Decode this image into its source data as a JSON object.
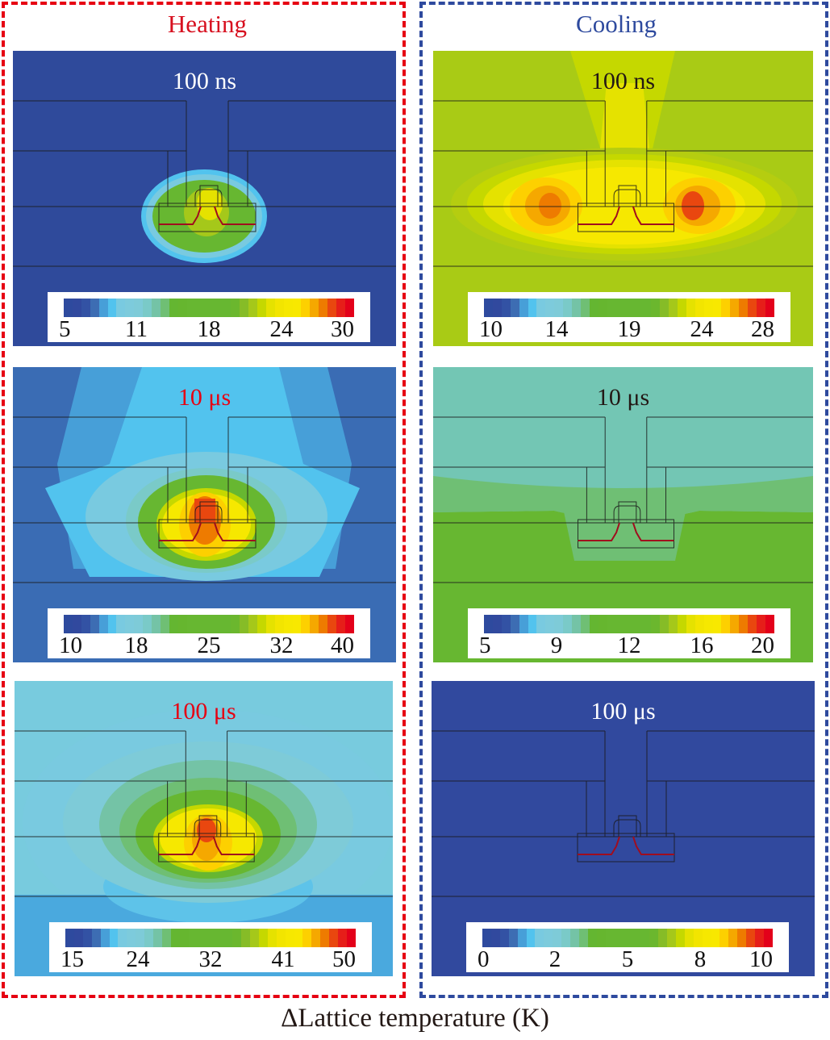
{
  "figure": {
    "columns": [
      {
        "title": "Heating",
        "color": "#e60012"
      },
      {
        "title": "Cooling",
        "color": "#2e4a9e"
      }
    ],
    "bottom_label": "ΔLattice temperature (K)"
  },
  "colormap": [
    "#2e4a9e",
    "#31499e",
    "#3352a4",
    "#3d6db3",
    "#479fd8",
    "#52c3ee",
    "#79cae0",
    "#7dcbdc",
    "#7ecbd8",
    "#7acac8",
    "#74c3a6",
    "#6fbf74",
    "#64b631",
    "#66b62f",
    "#67b731",
    "#67b731",
    "#67b731",
    "#67b731",
    "#67b731",
    "#6bb72e",
    "#86bc27",
    "#a5c81a",
    "#c5d800",
    "#e5e200",
    "#f2e500",
    "#f6e800",
    "#f8e800",
    "#fdd000",
    "#f5a800",
    "#ee7b00",
    "#e9470f",
    "#e61e19",
    "#e3001a"
  ],
  "panels": [
    {
      "id": "heating-100ns",
      "time": "100 ns",
      "time_color": "#ffffff",
      "bg": "#2f4a9b",
      "ticks": [
        "5",
        "11",
        "18",
        "24",
        "30"
      ]
    },
    {
      "id": "cooling-100ns",
      "time": "100 ns",
      "time_color": "#231815",
      "bg": "#a9cb15",
      "ticks": [
        "10",
        "14",
        "19",
        "24",
        "28"
      ]
    },
    {
      "id": "heating-10us",
      "time": "10 μs",
      "time_color": "#e60012",
      "bg": "#3a6cb4",
      "ticks": [
        "10",
        "18",
        "25",
        "32",
        "40"
      ]
    },
    {
      "id": "cooling-10us",
      "time": "10 μs",
      "time_color": "#231815",
      "bg": "#73c6b4",
      "ticks": [
        "5",
        "9",
        "12",
        "16",
        "20"
      ]
    },
    {
      "id": "heating-100us",
      "time": "100 μs",
      "time_color": "#e60012",
      "bg": "#78cbde",
      "ticks": [
        "15",
        "24",
        "32",
        "41",
        "50"
      ]
    },
    {
      "id": "cooling-100us",
      "time": "100 μs",
      "time_color": "#ffffff",
      "bg": "#31499e",
      "ticks": [
        "0",
        "2",
        "5",
        "8",
        "10"
      ]
    }
  ],
  "chart_data": [
    {
      "type": "heatmap",
      "title": "Heating — 100 ns",
      "colorbar_label": "ΔLattice temperature (K)",
      "colorbar_range": [
        5,
        30
      ],
      "colorbar_ticks": [
        5,
        11,
        18,
        24,
        30
      ],
      "peak_region": "gate/channel center",
      "peak_value_approx": 24
    },
    {
      "type": "heatmap",
      "title": "Cooling — 100 ns",
      "colorbar_label": "ΔLattice temperature (K)",
      "colorbar_range": [
        10,
        28
      ],
      "colorbar_ticks": [
        10,
        14,
        19,
        24,
        28
      ],
      "peak_region": "two lobes beside source/drain",
      "peak_value_approx": 27
    },
    {
      "type": "heatmap",
      "title": "Heating — 10 μs",
      "colorbar_label": "ΔLattice temperature (K)",
      "colorbar_range": [
        10,
        40
      ],
      "colorbar_ticks": [
        10,
        18,
        25,
        32,
        40
      ],
      "peak_region": "gate",
      "peak_value_approx": 38
    },
    {
      "type": "heatmap",
      "title": "Cooling — 10 μs",
      "colorbar_label": "ΔLattice temperature (K)",
      "colorbar_range": [
        5,
        20
      ],
      "colorbar_ticks": [
        5,
        9,
        12,
        16,
        20
      ],
      "peak_region": "nearly uniform",
      "peak_value_approx": 11
    },
    {
      "type": "heatmap",
      "title": "Heating — 100 μs",
      "colorbar_label": "ΔLattice temperature (K)",
      "colorbar_range": [
        15,
        50
      ],
      "colorbar_ticks": [
        15,
        24,
        32,
        41,
        50
      ],
      "peak_region": "gate",
      "peak_value_approx": 48
    },
    {
      "type": "heatmap",
      "title": "Cooling — 100 μs",
      "colorbar_label": "ΔLattice temperature (K)",
      "colorbar_range": [
        0,
        10
      ],
      "colorbar_ticks": [
        0,
        2,
        5,
        8,
        10
      ],
      "peak_region": "uniform",
      "peak_value_approx": 0
    }
  ]
}
